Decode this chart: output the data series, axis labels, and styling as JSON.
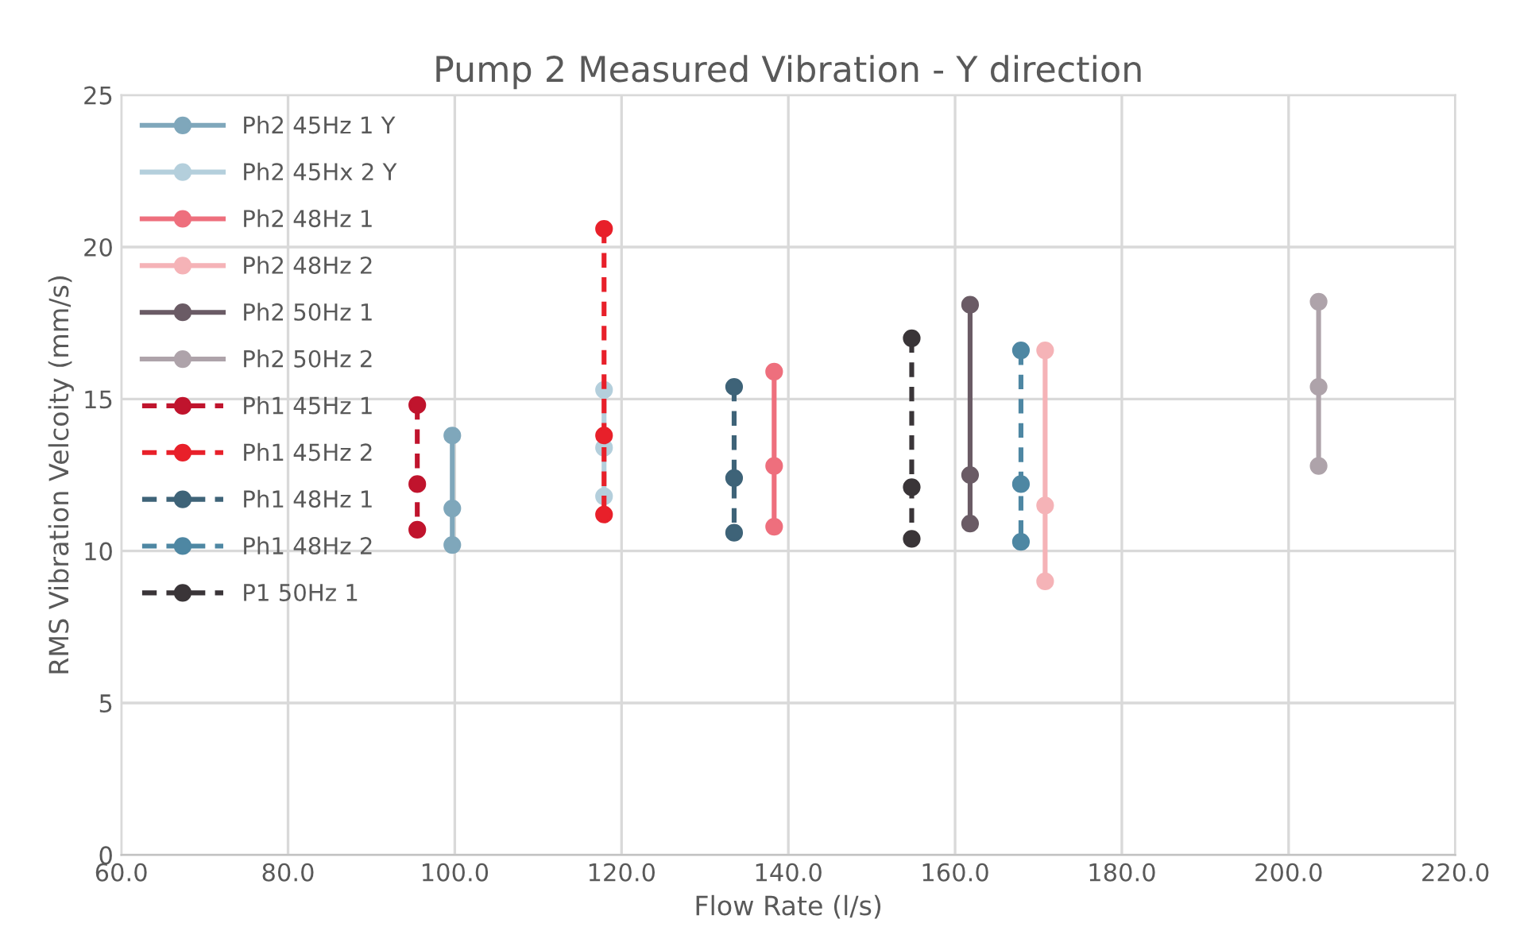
{
  "chart_data": {
    "type": "line",
    "title": "Pump 2 Measured Vibration - Y direction",
    "xlabel": "Flow Rate (l/s)",
    "ylabel": "RMS Vibration Velcoity (mm/s)",
    "xlim": [
      60,
      220
    ],
    "xticks": [
      {
        "value": 60,
        "label": "60.0"
      },
      {
        "value": 80,
        "label": "80.0"
      },
      {
        "value": 100,
        "label": "100.0"
      },
      {
        "value": 120,
        "label": "120.0"
      },
      {
        "value": 140,
        "label": "140.0"
      },
      {
        "value": 160,
        "label": "160.0"
      },
      {
        "value": 180,
        "label": "180.0"
      },
      {
        "value": 200,
        "label": "200.0"
      },
      {
        "value": 220,
        "label": "220.0"
      }
    ],
    "ylim": [
      0,
      25
    ],
    "yticks": [
      0,
      5,
      10,
      15,
      20,
      25
    ],
    "grid": true,
    "legend": "top left",
    "marker": "circle",
    "series": [
      {
        "name": "Ph2 45Hz 1 Y",
        "color": "#7fa7bb",
        "line_style": "solid",
        "x": [
          99.7,
          99.7,
          99.7
        ],
        "values": [
          13.8,
          11.4,
          10.2
        ]
      },
      {
        "name": "Ph2 45Hx 2 Y",
        "color": "#b4cfdc",
        "line_style": "solid",
        "x": [
          117.9,
          117.9,
          117.9
        ],
        "values": [
          15.3,
          13.4,
          11.8
        ]
      },
      {
        "name": "Ph2 48Hz 1",
        "color": "#ee6f7d",
        "line_style": "solid",
        "x": [
          138.3,
          138.3,
          138.3
        ],
        "values": [
          15.9,
          12.8,
          10.8
        ]
      },
      {
        "name": "Ph2 48Hz 2",
        "color": "#f5b3b7",
        "line_style": "solid",
        "x": [
          170.8,
          170.8,
          170.8
        ],
        "values": [
          16.6,
          11.5,
          9.0
        ]
      },
      {
        "name": "Ph2 50Hz 1",
        "color": "#6a5b65",
        "line_style": "solid",
        "x": [
          161.8,
          161.8,
          161.8
        ],
        "values": [
          18.1,
          12.5,
          10.9
        ]
      },
      {
        "name": "Ph2 50Hz 2",
        "color": "#aea3aa",
        "line_style": "solid",
        "x": [
          203.6,
          203.6,
          203.6
        ],
        "values": [
          18.2,
          15.4,
          12.8
        ]
      },
      {
        "name": "Ph1 45Hz 1",
        "color": "#c0142d",
        "line_style": "dashed",
        "x": [
          95.5,
          95.5,
          95.5
        ],
        "values": [
          14.8,
          12.2,
          10.7
        ]
      },
      {
        "name": "Ph1 45Hz 2",
        "color": "#e8202a",
        "line_style": "dashed",
        "x": [
          117.9,
          117.9,
          117.9
        ],
        "values": [
          20.6,
          13.8,
          11.2
        ]
      },
      {
        "name": "Ph1 48Hz 1",
        "color": "#3e6378",
        "line_style": "dashed",
        "x": [
          133.5,
          133.5,
          133.5
        ],
        "values": [
          15.4,
          12.4,
          10.6
        ]
      },
      {
        "name": "Ph1 48Hz 2",
        "color": "#4e87a3",
        "line_style": "dashed",
        "x": [
          167.9,
          167.9,
          167.9
        ],
        "values": [
          16.6,
          12.2,
          10.3
        ]
      },
      {
        "name": "P1 50Hz 1",
        "color": "#3a3538",
        "line_style": "dashed",
        "x": [
          154.8,
          154.8,
          154.8
        ],
        "values": [
          17.0,
          12.1,
          10.4
        ]
      }
    ]
  }
}
